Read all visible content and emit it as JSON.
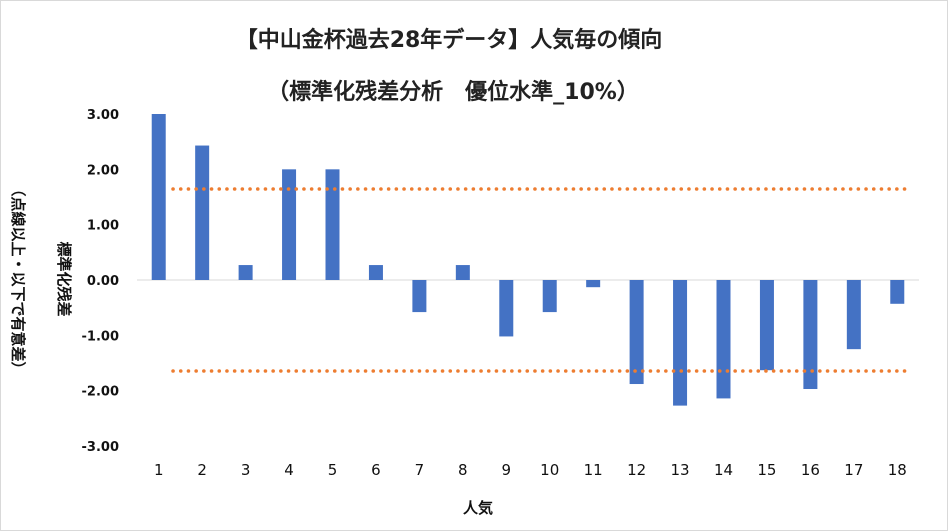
{
  "chart_data": {
    "type": "bar",
    "title": "【中山金杯過去28年データ】人気毎の傾向",
    "subtitle": "（標準化残差分析　優位水準_10%）",
    "xlabel": "人気",
    "ylabel": "標準化残差",
    "ylabel_note": "（点線以上・以下で有意差）",
    "ylim": [
      -3,
      3
    ],
    "ytick_values": [
      -3,
      -2,
      -1,
      0,
      1,
      2,
      3
    ],
    "ytick_labels": [
      "-3.00",
      "-2.00",
      "-1.00",
      "0.00",
      "1.00",
      "2.00",
      "3.00"
    ],
    "categories": [
      "1",
      "2",
      "3",
      "4",
      "5",
      "6",
      "7",
      "8",
      "9",
      "10",
      "11",
      "12",
      "13",
      "14",
      "15",
      "16",
      "17",
      "18"
    ],
    "values": [
      3.0,
      2.43,
      0.27,
      2.0,
      2.0,
      0.27,
      -0.58,
      0.27,
      -1.02,
      -0.58,
      -0.13,
      -1.88,
      -2.27,
      -2.14,
      -1.63,
      -1.97,
      -1.25,
      -0.43
    ],
    "threshold_lines": [
      1.645,
      -1.645
    ],
    "bar_color": "#4472c4",
    "threshold_color": "#ed7d31",
    "grid": false
  }
}
